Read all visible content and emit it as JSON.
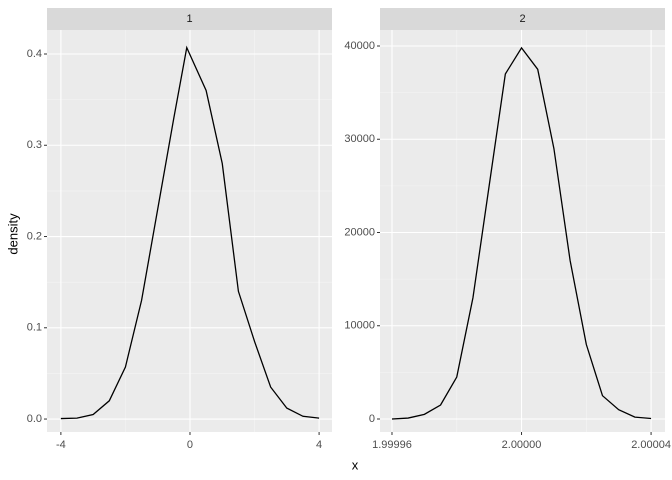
{
  "axis_labels": {
    "x": "x",
    "y": "density"
  },
  "chart_data": [
    {
      "type": "line",
      "strip": "1",
      "color": "#000000",
      "grid": true,
      "x": [
        -4,
        -3.5,
        -3,
        -2.5,
        -2,
        -1.5,
        -1,
        -0.5,
        -0.1,
        0.5,
        1,
        1.5,
        2,
        2.5,
        3,
        3.5,
        4
      ],
      "values": [
        0.0005,
        0.001,
        0.005,
        0.02,
        0.057,
        0.13,
        0.23,
        0.33,
        0.407,
        0.36,
        0.28,
        0.14,
        0.085,
        0.035,
        0.012,
        0.003,
        0.001
      ],
      "xlim": [
        -4.43,
        4.4
      ],
      "ylim": [
        -0.0142,
        0.4263
      ],
      "xticks": [
        -4,
        0,
        4
      ],
      "yticks": [
        {
          "value": 0,
          "label": "0.0"
        },
        0.1,
        0.2,
        0.3,
        0.4
      ]
    },
    {
      "type": "line",
      "strip": "2",
      "color": "#000000",
      "grid": true,
      "x": [
        1.99996,
        1.999965,
        1.99997,
        1.999975,
        1.99998,
        1.999985,
        1.99999,
        1.999995,
        2.0,
        2.000005,
        2.00001,
        2.000015,
        2.00002,
        2.000025,
        2.00003,
        2.000035,
        2.00004
      ],
      "values": [
        0,
        100,
        500,
        1500,
        4500,
        13000,
        25000,
        37000,
        39800,
        37500,
        29000,
        17000,
        8000,
        2500,
        1000,
        200,
        50
      ],
      "xlim": [
        1.9999563,
        2.0000443
      ],
      "ylim": [
        -1394,
        41716
      ],
      "xticks": [
        1.99996,
        {
          "value": 2.0,
          "label": "2.00000"
        },
        2.00004
      ],
      "yticks": [
        0,
        10000,
        20000,
        30000,
        40000
      ]
    }
  ]
}
